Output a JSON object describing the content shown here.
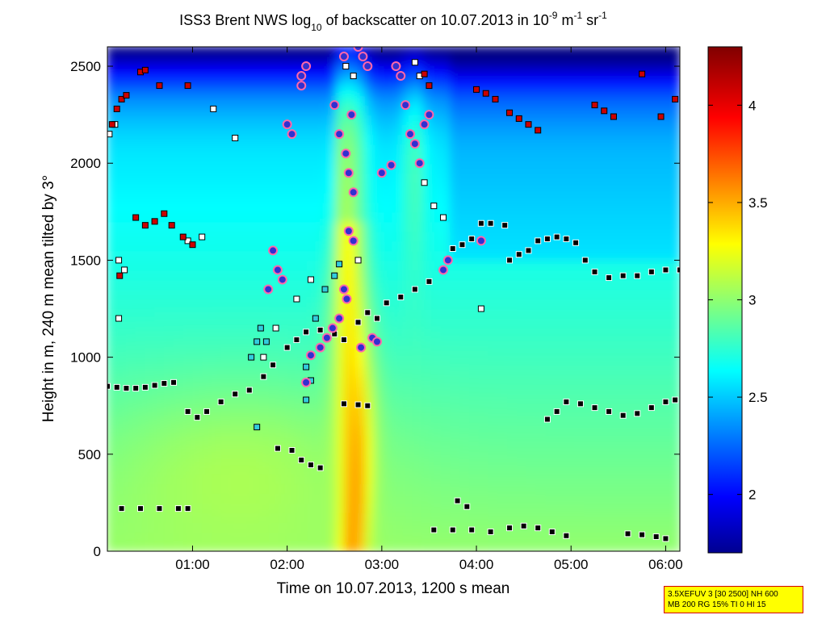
{
  "figure": {
    "title_main": "ISS3 Brent NWS log",
    "title_sub10": "10",
    "title_mid": " of backscatter on 10.07.2013 in 10",
    "title_exp1": "-9",
    "title_unit_m": " m",
    "title_exp2": "-1",
    "title_unit_sr": " sr",
    "title_exp3": "-1",
    "info_line1": "3.5XEFUV 3 [30 2500] NH 600",
    "info_line2": "MB 200 RG 15% TI 0 HI 15"
  },
  "chart_data": {
    "type": "heatmap",
    "xlabel": "Time on 10.07.2013, 1200 s mean",
    "ylabel": "Height in m, 240 m mean tilted by 3°",
    "xlim": [
      0.1,
      6.15
    ],
    "ylim": [
      0,
      2600
    ],
    "x_ticks": [
      {
        "value": 1,
        "label": "01:00"
      },
      {
        "value": 2,
        "label": "02:00"
      },
      {
        "value": 3,
        "label": "03:00"
      },
      {
        "value": 4,
        "label": "04:00"
      },
      {
        "value": 5,
        "label": "05:00"
      },
      {
        "value": 6,
        "label": "06:00"
      }
    ],
    "y_ticks": [
      {
        "value": 0,
        "label": "0"
      },
      {
        "value": 500,
        "label": "500"
      },
      {
        "value": 1000,
        "label": "1000"
      },
      {
        "value": 1500,
        "label": "1500"
      },
      {
        "value": 2000,
        "label": "2000"
      },
      {
        "value": 2500,
        "label": "2500"
      }
    ],
    "colorbar": {
      "clim": [
        1.7,
        4.3
      ],
      "colormap": "jet",
      "ticks": [
        {
          "value": 2,
          "label": "2"
        },
        {
          "value": 2.5,
          "label": "2.5"
        },
        {
          "value": 3,
          "label": "3"
        },
        {
          "value": 3.5,
          "label": "3.5"
        },
        {
          "value": 4,
          "label": "4"
        }
      ]
    },
    "field_approximation": {
      "description_of_layers": "background decreasing with height, bright plume near 02:35-02:55",
      "base_value": 3.05,
      "top_value": 2.0,
      "plume_center_time": 2.7,
      "plume_value": 3.6
    },
    "marker_series": [
      {
        "style": "black-square",
        "points": [
          [
            0.1,
            850
          ],
          [
            0.2,
            845
          ],
          [
            0.3,
            840
          ],
          [
            0.4,
            840
          ],
          [
            0.5,
            845
          ],
          [
            0.6,
            855
          ],
          [
            0.7,
            865
          ],
          [
            0.8,
            870
          ],
          [
            0.95,
            720
          ],
          [
            1.05,
            690
          ],
          [
            1.15,
            720
          ],
          [
            1.3,
            770
          ],
          [
            1.45,
            810
          ],
          [
            1.6,
            830
          ],
          [
            1.75,
            900
          ],
          [
            1.85,
            960
          ],
          [
            2.0,
            1050
          ],
          [
            2.1,
            1090
          ],
          [
            2.2,
            1130
          ],
          [
            2.35,
            1140
          ],
          [
            2.5,
            1120
          ],
          [
            2.6,
            1090
          ],
          [
            2.75,
            1180
          ],
          [
            2.85,
            1230
          ],
          [
            2.95,
            1200
          ],
          [
            3.05,
            1280
          ],
          [
            3.2,
            1310
          ],
          [
            3.35,
            1350
          ],
          [
            3.5,
            1390
          ],
          [
            3.65,
            1450
          ],
          [
            3.75,
            1560
          ],
          [
            3.85,
            1580
          ],
          [
            3.95,
            1610
          ],
          [
            4.05,
            1690
          ],
          [
            4.15,
            1690
          ],
          [
            4.3,
            1680
          ],
          [
            4.35,
            1500
          ],
          [
            4.45,
            1530
          ],
          [
            4.55,
            1550
          ],
          [
            4.65,
            1600
          ],
          [
            4.75,
            1610
          ],
          [
            4.85,
            1620
          ],
          [
            4.95,
            1610
          ],
          [
            5.05,
            1590
          ],
          [
            5.15,
            1500
          ],
          [
            5.25,
            1440
          ],
          [
            5.4,
            1410
          ],
          [
            5.55,
            1420
          ],
          [
            5.7,
            1420
          ],
          [
            5.85,
            1440
          ],
          [
            6.0,
            1450
          ],
          [
            6.15,
            1450
          ],
          [
            0.25,
            220
          ],
          [
            0.45,
            220
          ],
          [
            0.65,
            220
          ],
          [
            0.85,
            220
          ],
          [
            0.95,
            220
          ],
          [
            1.9,
            530
          ],
          [
            2.05,
            520
          ],
          [
            2.15,
            470
          ],
          [
            2.25,
            445
          ],
          [
            2.35,
            430
          ],
          [
            2.6,
            760
          ],
          [
            2.75,
            755
          ],
          [
            2.85,
            750
          ],
          [
            3.55,
            110
          ],
          [
            3.75,
            110
          ],
          [
            3.95,
            110
          ],
          [
            4.15,
            100
          ],
          [
            4.35,
            120
          ],
          [
            4.5,
            130
          ],
          [
            4.65,
            120
          ],
          [
            4.8,
            100
          ],
          [
            4.95,
            80
          ],
          [
            3.8,
            260
          ],
          [
            3.9,
            230
          ],
          [
            4.75,
            680
          ],
          [
            4.85,
            720
          ],
          [
            4.95,
            770
          ],
          [
            5.1,
            760
          ],
          [
            5.25,
            740
          ],
          [
            5.4,
            720
          ],
          [
            5.55,
            700
          ],
          [
            5.7,
            710
          ],
          [
            5.85,
            740
          ],
          [
            6.0,
            770
          ],
          [
            6.1,
            780
          ],
          [
            5.6,
            90
          ],
          [
            5.75,
            85
          ],
          [
            5.9,
            75
          ],
          [
            6.0,
            65
          ]
        ]
      },
      {
        "style": "white-square",
        "points": [
          [
            0.12,
            2150
          ],
          [
            0.18,
            2200
          ],
          [
            1.22,
            2280
          ],
          [
            1.45,
            2130
          ],
          [
            0.22,
            1500
          ],
          [
            0.28,
            1450
          ],
          [
            0.22,
            1200
          ],
          [
            0.95,
            1600
          ],
          [
            1.1,
            1620
          ],
          [
            1.88,
            1150
          ],
          [
            2.1,
            1300
          ],
          [
            2.25,
            1400
          ],
          [
            3.65,
            1720
          ],
          [
            3.55,
            1780
          ],
          [
            3.45,
            1900
          ],
          [
            3.4,
            2450
          ],
          [
            3.35,
            2520
          ],
          [
            2.7,
            2450
          ],
          [
            2.62,
            2500
          ],
          [
            2.75,
            1500
          ],
          [
            4.05,
            1250
          ],
          [
            1.75,
            1000
          ]
        ]
      },
      {
        "style": "cyan-square",
        "points": [
          [
            1.62,
            1000
          ],
          [
            1.68,
            1080
          ],
          [
            1.72,
            1150
          ],
          [
            1.78,
            1080
          ],
          [
            2.2,
            950
          ],
          [
            2.25,
            880
          ],
          [
            2.2,
            780
          ],
          [
            2.3,
            1200
          ],
          [
            2.4,
            1350
          ],
          [
            2.5,
            1420
          ],
          [
            2.55,
            1480
          ],
          [
            1.68,
            640
          ]
        ]
      },
      {
        "style": "red-square",
        "points": [
          [
            0.15,
            2200
          ],
          [
            0.2,
            2280
          ],
          [
            0.25,
            2330
          ],
          [
            0.3,
            2350
          ],
          [
            0.45,
            2470
          ],
          [
            0.5,
            2480
          ],
          [
            0.65,
            2400
          ],
          [
            0.4,
            1720
          ],
          [
            0.5,
            1680
          ],
          [
            0.6,
            1700
          ],
          [
            0.7,
            1740
          ],
          [
            0.78,
            1680
          ],
          [
            0.9,
            1620
          ],
          [
            1.0,
            1580
          ],
          [
            0.23,
            1420
          ],
          [
            3.45,
            2460
          ],
          [
            3.5,
            2400
          ],
          [
            4.0,
            2380
          ],
          [
            4.1,
            2360
          ],
          [
            4.2,
            2330
          ],
          [
            4.35,
            2260
          ],
          [
            4.45,
            2230
          ],
          [
            4.55,
            2200
          ],
          [
            4.65,
            2170
          ],
          [
            5.25,
            2300
          ],
          [
            5.35,
            2270
          ],
          [
            5.45,
            2240
          ],
          [
            5.75,
            2460
          ],
          [
            5.95,
            2240
          ],
          [
            6.1,
            2330
          ],
          [
            0.95,
            2400
          ]
        ]
      },
      {
        "style": "blue-circle",
        "points": [
          [
            2.0,
            2200
          ],
          [
            2.05,
            2150
          ],
          [
            2.15,
            2450
          ],
          [
            2.15,
            2400
          ],
          [
            2.2,
            2500
          ],
          [
            2.5,
            2300
          ],
          [
            2.55,
            2150
          ],
          [
            2.62,
            2050
          ],
          [
            2.65,
            1950
          ],
          [
            2.7,
            1850
          ],
          [
            2.68,
            2250
          ],
          [
            2.6,
            2550
          ],
          [
            2.75,
            2600
          ],
          [
            2.8,
            2550
          ],
          [
            2.85,
            2500
          ],
          [
            3.15,
            2500
          ],
          [
            3.2,
            2450
          ],
          [
            3.25,
            2300
          ],
          [
            3.3,
            2150
          ],
          [
            3.35,
            2100
          ],
          [
            3.4,
            2000
          ],
          [
            3.45,
            2200
          ],
          [
            3.5,
            2250
          ],
          [
            3.0,
            1950
          ],
          [
            3.1,
            1990
          ],
          [
            2.9,
            1100
          ],
          [
            2.95,
            1080
          ],
          [
            1.85,
            1550
          ],
          [
            1.9,
            1450
          ],
          [
            1.95,
            1400
          ],
          [
            1.8,
            1350
          ],
          [
            2.35,
            1050
          ],
          [
            2.42,
            1100
          ],
          [
            2.48,
            1150
          ],
          [
            2.55,
            1200
          ],
          [
            2.6,
            1350
          ],
          [
            2.65,
            1650
          ],
          [
            2.7,
            1600
          ],
          [
            2.25,
            1010
          ],
          [
            2.2,
            870
          ],
          [
            2.63,
            1300
          ],
          [
            3.65,
            1450
          ],
          [
            3.7,
            1500
          ],
          [
            4.05,
            1600
          ],
          [
            2.78,
            1050
          ]
        ]
      }
    ]
  }
}
